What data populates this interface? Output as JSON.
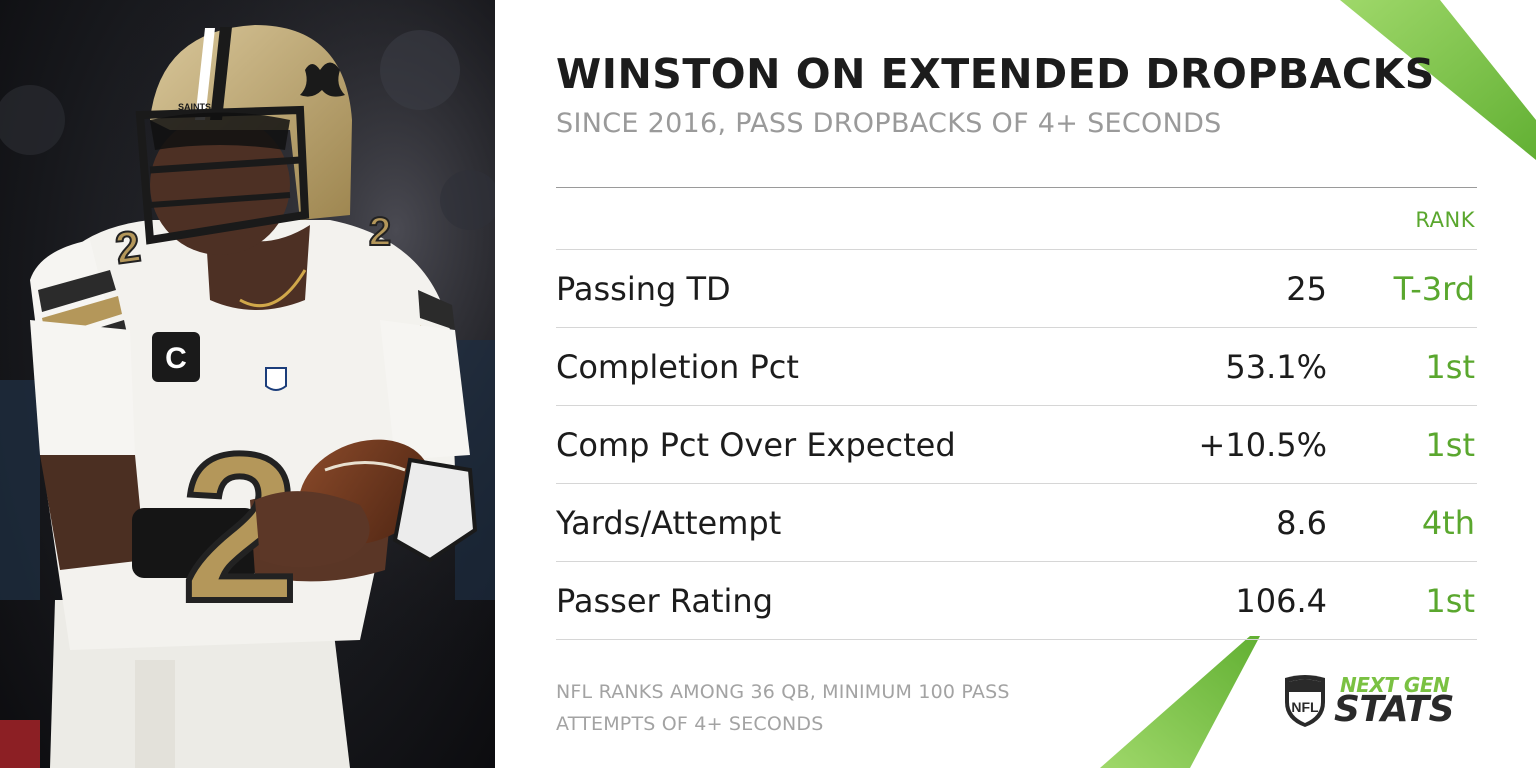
{
  "photo": {
    "subject": "player-photo",
    "jersey_number": "2",
    "helmet_text": "SAINTS",
    "captain_patch": "C",
    "league_badge": "NFL"
  },
  "title": "WINSTON ON EXTENDED DROPBACKS",
  "subtitle": "SINCE 2016, PASS DROPBACKS OF 4+ SECONDS",
  "table": {
    "rank_header": "RANK",
    "rows": [
      {
        "label": "Passing TD",
        "value": "25",
        "rank": "T-3rd"
      },
      {
        "label": "Completion Pct",
        "value": "53.1%",
        "rank": "1st"
      },
      {
        "label": "Comp Pct Over Expected",
        "value": "+10.5%",
        "rank": "1st"
      },
      {
        "label": "Yards/Attempt",
        "value": "8.6",
        "rank": "4th"
      },
      {
        "label": "Passer Rating",
        "value": "106.4",
        "rank": "1st"
      }
    ]
  },
  "footnote": {
    "line1": "NFL RANKS AMONG 36 QB, MINIMUM 100 PASS",
    "line2": "ATTEMPTS OF 4+ SECONDS"
  },
  "logo": {
    "shield_text": "NFL",
    "line1": "NEXT GEN",
    "line2": "STATS"
  },
  "colors": {
    "accent_green": "#5aa72e",
    "slash_green": "#7ac142",
    "text_dark": "#1c1c1c",
    "text_grey": "#9a9a9a",
    "jersey_gold": "#b4975a"
  }
}
